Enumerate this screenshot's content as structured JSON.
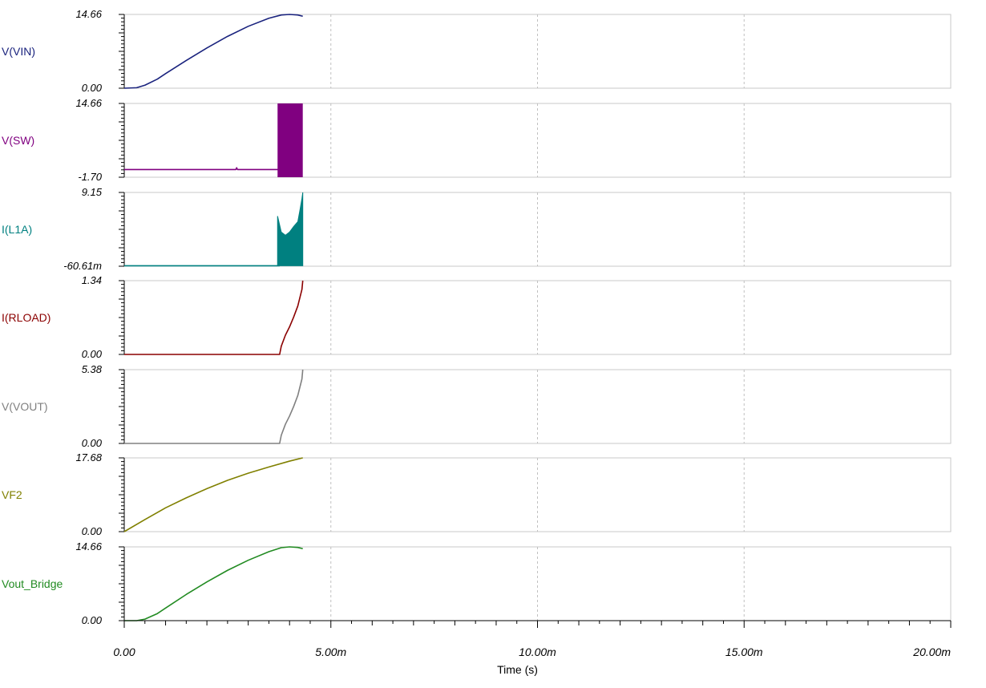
{
  "chart_data": {
    "type": "line",
    "xlabel": "Time (s)",
    "x_ticks": [
      "0.00",
      "5.00m",
      "10.00m",
      "15.00m",
      "20.00m"
    ],
    "xlim": [
      0,
      0.02
    ],
    "x_grid": "dashed vertical gridlines at major ticks",
    "panels": [
      {
        "name": "V(VIN)",
        "color": "#1a237e",
        "ytop_label": "14.66",
        "ybot_label": "0.00",
        "ylim": [
          0,
          14.66
        ],
        "x": [
          0,
          0.0003,
          0.0005,
          0.0008,
          0.001,
          0.0015,
          0.002,
          0.0025,
          0.003,
          0.0035,
          0.0038,
          0.004,
          0.0042,
          0.00432
        ],
        "y": [
          0,
          0.1,
          0.6,
          1.8,
          2.9,
          5.5,
          8.0,
          10.3,
          12.3,
          13.9,
          14.55,
          14.66,
          14.55,
          14.3
        ]
      },
      {
        "name": "V(SW)",
        "color": "#800080",
        "ytop_label": "14.66",
        "ybot_label": "-1.70",
        "ylim": [
          -1.7,
          14.66
        ],
        "x": [
          0,
          0.0027,
          0.00272,
          0.00274,
          0.00376
        ],
        "y": [
          0,
          0,
          0.4,
          0,
          0
        ],
        "band": {
          "x_start": 0.00371,
          "x_end": 0.00432,
          "y_low": -1.7,
          "y_high": 14.66
        }
      },
      {
        "name": "I(L1A)",
        "color": "#008080",
        "ytop_label": "9.15",
        "ybot_label": "-60.61m",
        "ylim": [
          -0.06061,
          9.15
        ],
        "x": [
          0,
          0.00376
        ],
        "y": [
          0,
          0
        ],
        "band_upper": {
          "x": [
            0.00371,
            0.0038,
            0.0039,
            0.004,
            0.0041,
            0.0042,
            0.00425,
            0.0043,
            0.00432
          ],
          "y": [
            6.2,
            4.2,
            3.8,
            4.2,
            4.9,
            5.5,
            6.9,
            8.4,
            9.15
          ]
        },
        "band_lower": {
          "x": [
            0.00371,
            0.0038,
            0.0039,
            0.004,
            0.0041,
            0.0042,
            0.00425,
            0.0043,
            0.00432
          ],
          "y": [
            0,
            0,
            0,
            0,
            0,
            0,
            0,
            0,
            0
          ]
        }
      },
      {
        "name": "I(RLOAD)",
        "color": "#8b0000",
        "ytop_label": "1.34",
        "ybot_label": "0.00",
        "ylim": [
          0,
          1.34
        ],
        "x": [
          0,
          0.00376,
          0.0038,
          0.0039,
          0.004,
          0.0041,
          0.0042,
          0.0043,
          0.00432
        ],
        "y": [
          0,
          0,
          0.15,
          0.35,
          0.5,
          0.68,
          0.88,
          1.18,
          1.34
        ]
      },
      {
        "name": "V(VOUT)",
        "color": "#808080",
        "ytop_label": "5.38",
        "ybot_label": "0.00",
        "ylim": [
          0,
          5.38
        ],
        "x": [
          0,
          0.00376,
          0.0038,
          0.0039,
          0.004,
          0.0041,
          0.0042,
          0.0043,
          0.00432
        ],
        "y": [
          0,
          0,
          0.6,
          1.4,
          2.0,
          2.7,
          3.5,
          4.7,
          5.38
        ]
      },
      {
        "name": "VF2",
        "color": "#808000",
        "ytop_label": "17.68",
        "ybot_label": "0.00",
        "ylim": [
          0,
          17.68
        ],
        "x": [
          0,
          0.0005,
          0.001,
          0.0015,
          0.002,
          0.0025,
          0.003,
          0.0035,
          0.004,
          0.00432
        ],
        "y": [
          0,
          2.9,
          5.7,
          8.1,
          10.3,
          12.3,
          14.0,
          15.5,
          16.9,
          17.68
        ]
      },
      {
        "name": "Vout_Bridge",
        "color": "#228b22",
        "ytop_label": "14.66",
        "ybot_label": "0.00",
        "ylim": [
          0,
          14.66
        ],
        "x": [
          0,
          0.0003,
          0.0005,
          0.0008,
          0.001,
          0.0015,
          0.002,
          0.0025,
          0.003,
          0.0035,
          0.0038,
          0.004,
          0.0042,
          0.00432
        ],
        "y": [
          0,
          0,
          0.3,
          1.4,
          2.5,
          5.2,
          7.7,
          10.0,
          12.0,
          13.7,
          14.5,
          14.66,
          14.55,
          14.3
        ]
      }
    ]
  }
}
